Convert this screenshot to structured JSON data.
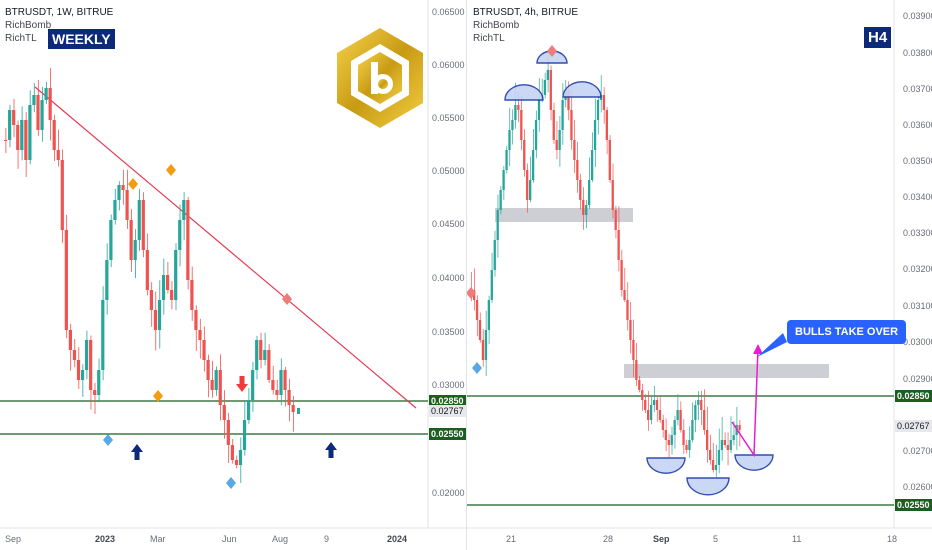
{
  "left": {
    "symbol_line": "BTRUSDT, 1W, BITRUE",
    "indicators": [
      "RichBomb",
      "RichTL"
    ],
    "badge": "WEEKLY",
    "y_ticks": [
      "0.06500",
      "0.06000",
      "0.05500",
      "0.05000",
      "0.04500",
      "0.04000",
      "0.03500",
      "0.03000",
      "0.02000"
    ],
    "x_ticks": [
      {
        "label": "Sep",
        "bold": false
      },
      {
        "label": "2023",
        "bold": true
      },
      {
        "label": "Mar",
        "bold": false
      },
      {
        "label": "Jun",
        "bold": false
      },
      {
        "label": "Aug",
        "bold": false
      },
      {
        "label": "9",
        "bold": false
      },
      {
        "label": "2024",
        "bold": true
      }
    ],
    "price_tags": [
      {
        "value": "0.02850",
        "bg": "#1b5e20",
        "fg": "#ffffff"
      },
      {
        "value": "0.02767",
        "bg": "#e8e8ec",
        "fg": "#131722"
      },
      {
        "value": "0.02550",
        "bg": "#1b5e20",
        "fg": "#ffffff"
      }
    ]
  },
  "right": {
    "symbol_line": "BTRUSDT, 4h, BITRUE",
    "indicators": [
      "RichBomb",
      "RichTL"
    ],
    "badge": "H4",
    "callout": "BULLS TAKE OVER",
    "y_ticks": [
      "0.03900",
      "0.03800",
      "0.03700",
      "0.03600",
      "0.03500",
      "0.03400",
      "0.03300",
      "0.03200",
      "0.03100",
      "0.03000",
      "0.02900",
      "0.02700",
      "0.02600"
    ],
    "x_ticks": [
      {
        "label": "21",
        "bold": false
      },
      {
        "label": "28",
        "bold": false
      },
      {
        "label": "Sep",
        "bold": true
      },
      {
        "label": "5",
        "bold": false
      },
      {
        "label": "11",
        "bold": false
      },
      {
        "label": "18",
        "bold": false
      }
    ],
    "price_tags": [
      {
        "value": "0.02850",
        "bg": "#1b5e20",
        "fg": "#ffffff"
      },
      {
        "value": "0.02767",
        "bg": "#e8e8ec",
        "fg": "#131722"
      },
      {
        "value": "0.02550",
        "bg": "#1b5e20",
        "fg": "#ffffff"
      }
    ]
  },
  "colors": {
    "bull": "#26a69a",
    "bear": "#ef5350",
    "support": "#1b5e20",
    "trendline": "#e53950",
    "accent": "#2962ff",
    "badge": "#0d2a7a",
    "arrow_pink": "#e91ecf"
  }
}
